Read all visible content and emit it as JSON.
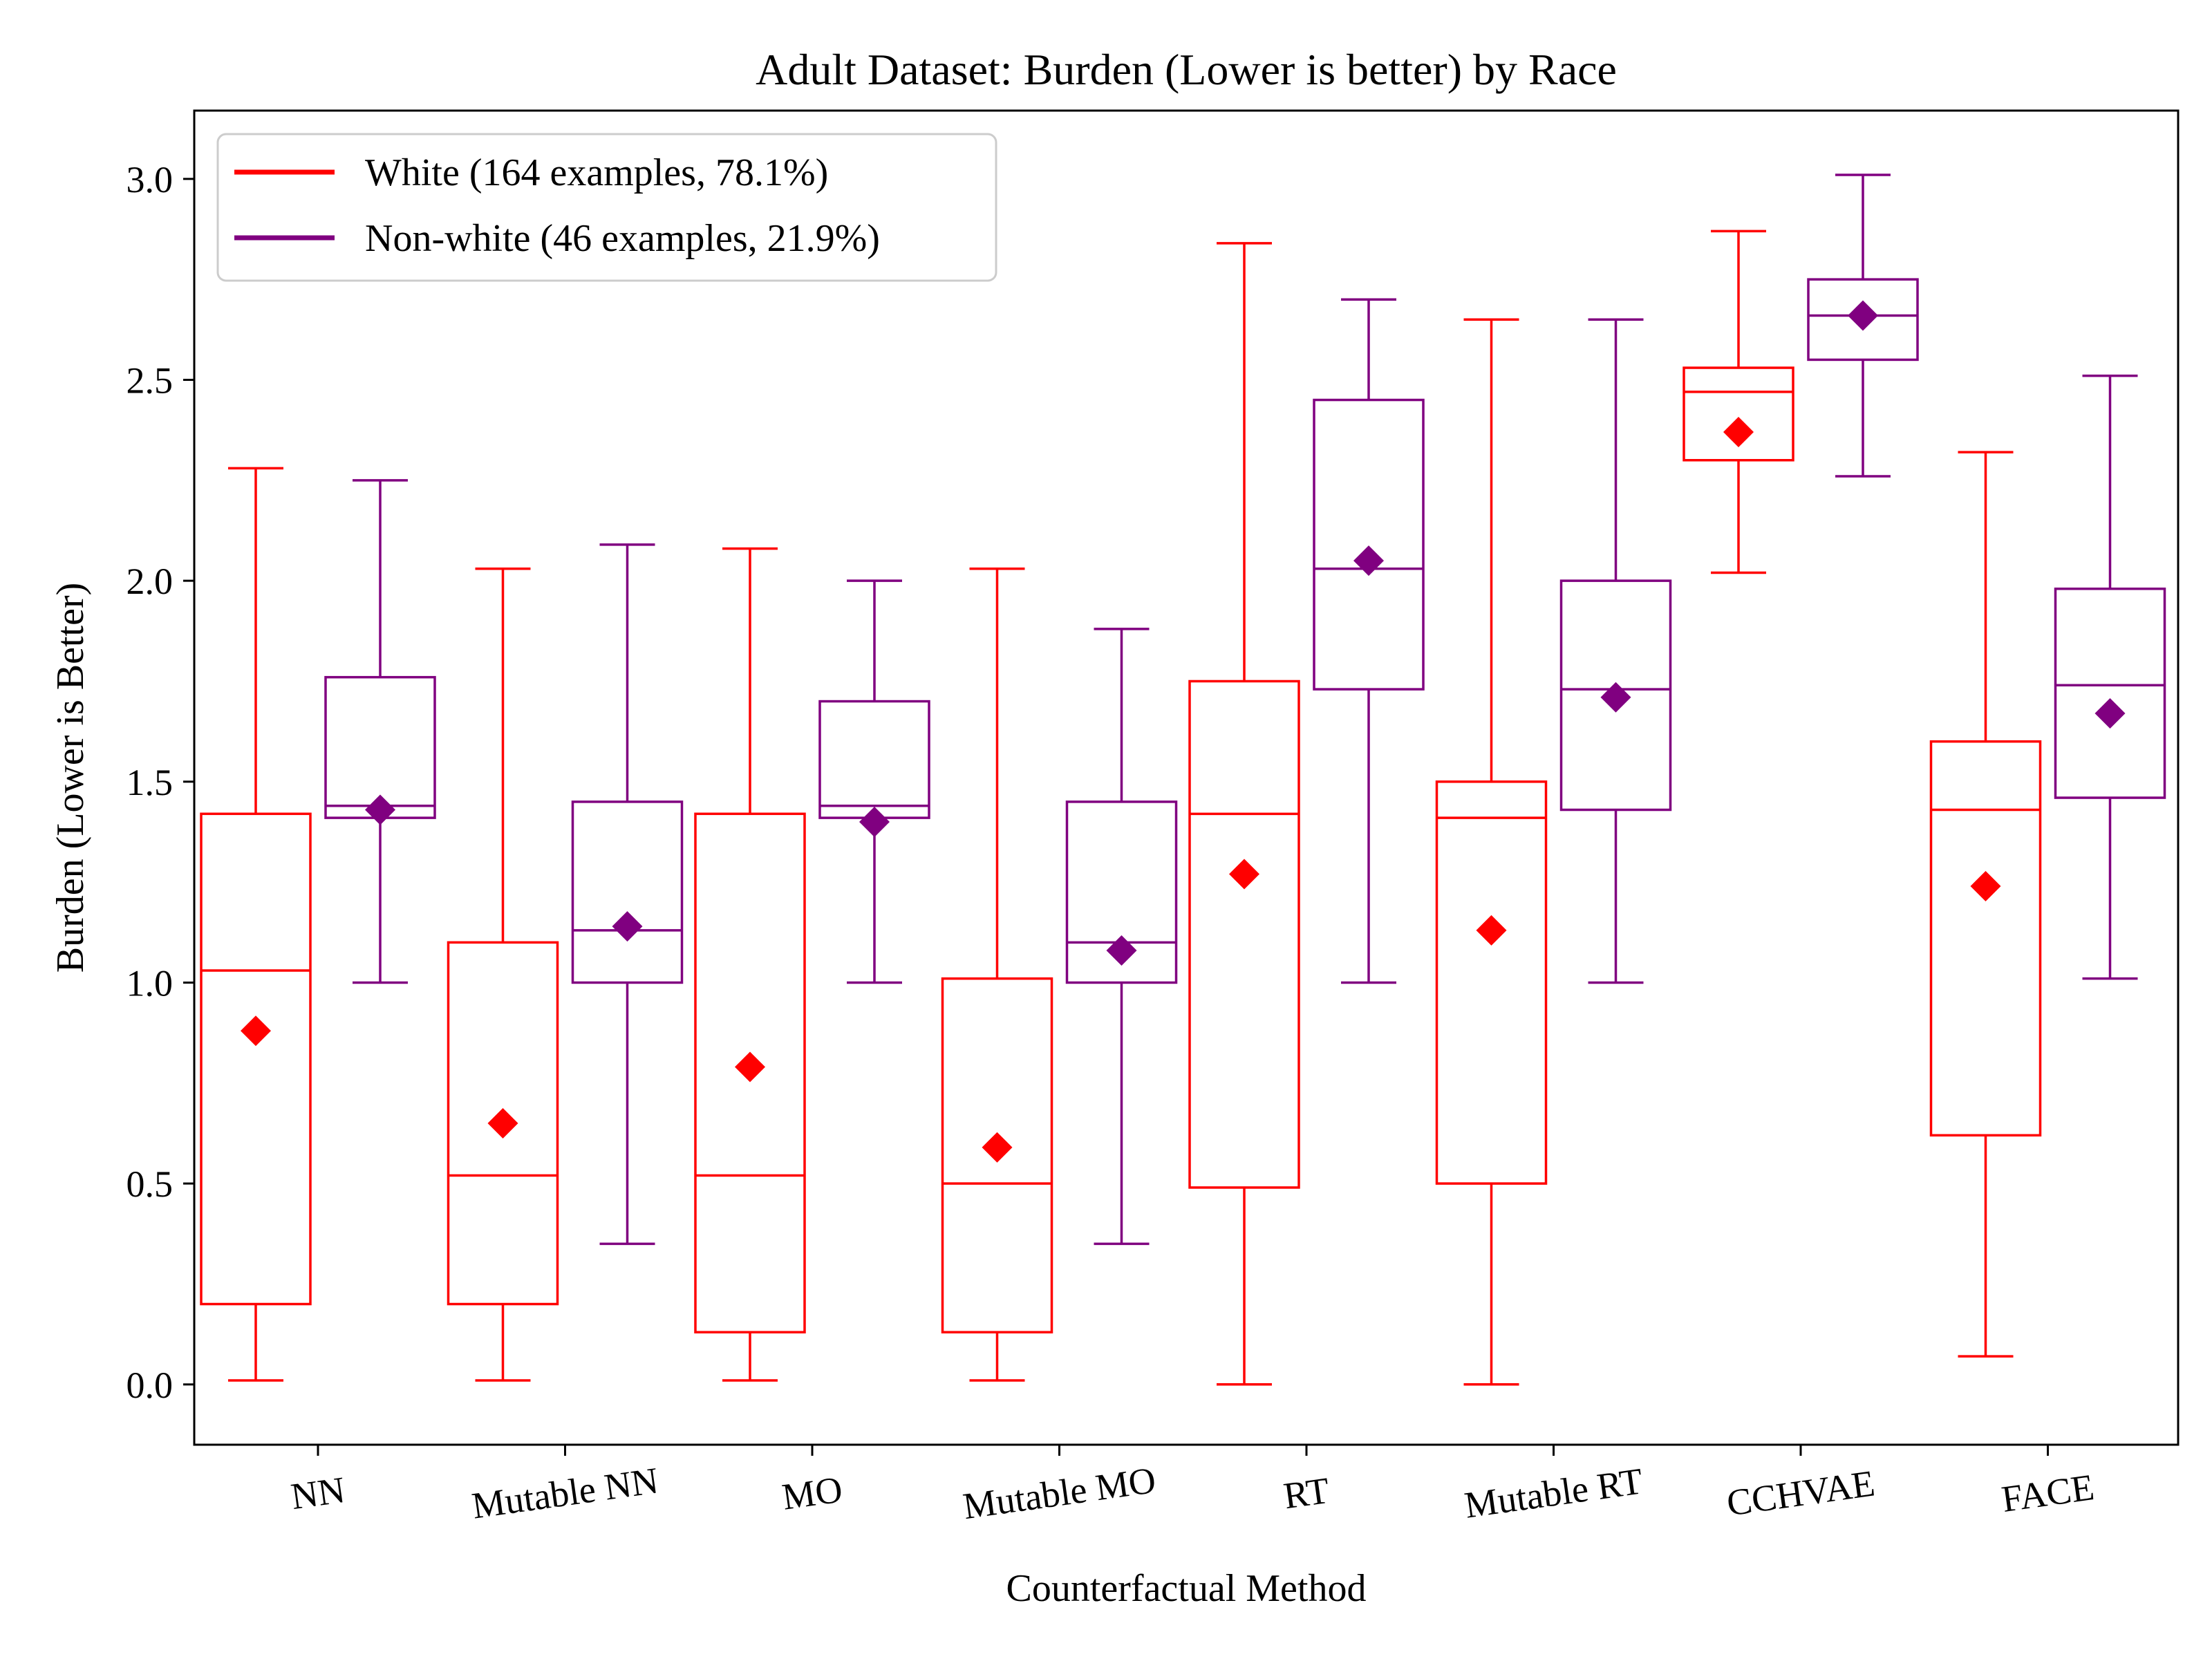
{
  "chart_data": {
    "type": "box",
    "title": "Adult Dataset: Burden (Lower is better) by Race",
    "xlabel": "Counterfactual Method",
    "ylabel": "Burden (Lower is Better)",
    "ylim": [
      -0.15,
      3.17
    ],
    "yticks": [
      0.0,
      0.5,
      1.0,
      1.5,
      2.0,
      2.5,
      3.0
    ],
    "ytick_labels": [
      "0.0",
      "0.5",
      "1.0",
      "1.5",
      "2.0",
      "2.5",
      "3.0"
    ],
    "grid": false,
    "legend_position": "top-left",
    "categories": [
      "NN",
      "Mutable NN",
      "MO",
      "Mutable MO",
      "RT",
      "Mutable RT",
      "CCHVAE",
      "FACE"
    ],
    "series": [
      {
        "name": "White (164 examples, 78.1%)",
        "color": "#ff0000",
        "boxes": [
          {
            "whislo": 0.01,
            "q1": 0.2,
            "median": 1.03,
            "q3": 1.42,
            "whishi": 2.28,
            "mean": 0.88
          },
          {
            "whislo": 0.01,
            "q1": 0.2,
            "median": 0.52,
            "q3": 1.1,
            "whishi": 2.03,
            "mean": 0.65
          },
          {
            "whislo": 0.01,
            "q1": 0.13,
            "median": 0.52,
            "q3": 1.42,
            "whishi": 2.08,
            "mean": 0.79
          },
          {
            "whislo": 0.01,
            "q1": 0.13,
            "median": 0.5,
            "q3": 1.01,
            "whishi": 2.03,
            "mean": 0.59
          },
          {
            "whislo": 0.0,
            "q1": 0.49,
            "median": 1.42,
            "q3": 1.75,
            "whishi": 2.84,
            "mean": 1.27
          },
          {
            "whislo": 0.0,
            "q1": 0.5,
            "median": 1.41,
            "q3": 1.5,
            "whishi": 2.65,
            "mean": 1.13
          },
          {
            "whislo": 2.02,
            "q1": 2.3,
            "median": 2.47,
            "q3": 2.53,
            "whishi": 2.87,
            "mean": 2.37
          },
          {
            "whislo": 0.07,
            "q1": 0.62,
            "median": 1.43,
            "q3": 1.6,
            "whishi": 2.32,
            "mean": 1.24
          }
        ]
      },
      {
        "name": "Non-white (46 examples, 21.9%)",
        "color": "#800080",
        "boxes": [
          {
            "whislo": 1.0,
            "q1": 1.41,
            "median": 1.44,
            "q3": 1.76,
            "whishi": 2.25,
            "mean": 1.43
          },
          {
            "whislo": 0.35,
            "q1": 1.0,
            "median": 1.13,
            "q3": 1.45,
            "whishi": 2.09,
            "mean": 1.14
          },
          {
            "whislo": 1.0,
            "q1": 1.41,
            "median": 1.44,
            "q3": 1.7,
            "whishi": 2.0,
            "mean": 1.4
          },
          {
            "whislo": 0.35,
            "q1": 1.0,
            "median": 1.1,
            "q3": 1.45,
            "whishi": 1.88,
            "mean": 1.08
          },
          {
            "whislo": 1.0,
            "q1": 1.73,
            "median": 2.03,
            "q3": 2.45,
            "whishi": 2.7,
            "mean": 2.05
          },
          {
            "whislo": 1.0,
            "q1": 1.43,
            "median": 1.73,
            "q3": 2.0,
            "whishi": 2.65,
            "mean": 1.71
          },
          {
            "whislo": 2.26,
            "q1": 2.55,
            "median": 2.66,
            "q3": 2.75,
            "whishi": 3.01,
            "mean": 2.66
          },
          {
            "whislo": 1.01,
            "q1": 1.46,
            "median": 1.74,
            "q3": 1.98,
            "whishi": 2.51,
            "mean": 1.67
          }
        ]
      }
    ]
  }
}
